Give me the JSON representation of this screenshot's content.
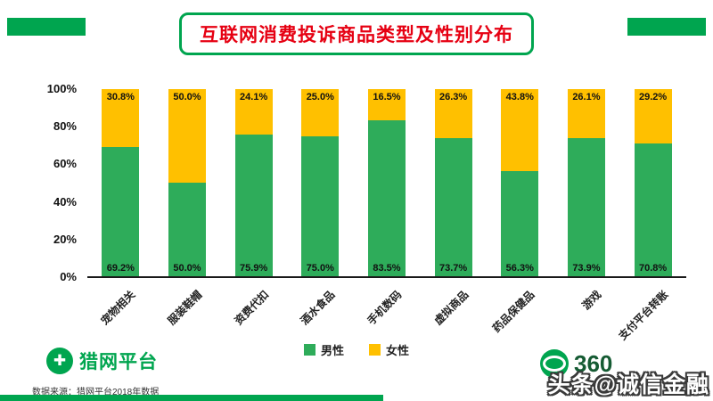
{
  "header": {
    "title": "互联网消费投诉商品类型及性别分布",
    "title_color": "#E60012",
    "accent_color": "#00A54F"
  },
  "chart_data": {
    "type": "bar",
    "stacked": true,
    "percent": true,
    "title": "互联网消费投诉商品类型及性别分布",
    "categories": [
      "宠物相关",
      "服装鞋帽",
      "资费代扣",
      "酒水食品",
      "手机数码",
      "虚拟商品",
      "药品保健品",
      "游戏",
      "支付平台转账"
    ],
    "series": [
      {
        "name": "男性",
        "color": "#2EAC5A",
        "values": [
          69.2,
          50.0,
          75.9,
          75.0,
          83.5,
          73.7,
          56.3,
          73.9,
          70.8
        ]
      },
      {
        "name": "女性",
        "color": "#FFC000",
        "values": [
          30.8,
          50.0,
          24.1,
          25.0,
          16.5,
          26.3,
          43.8,
          26.1,
          29.2
        ]
      }
    ],
    "y_ticks": [
      "100%",
      "80%",
      "60%",
      "40%",
      "20%",
      "0%"
    ],
    "ylim": [
      0,
      100
    ],
    "grid": false,
    "legend_position": "bottom"
  },
  "footer": {
    "left_logo_text": "猎网平台",
    "left_logo_icon": "cross-icon",
    "source": "数据来源：猎网平台2018年数据",
    "right_logo_text": "360",
    "watermark": "头条@诚信金融"
  }
}
